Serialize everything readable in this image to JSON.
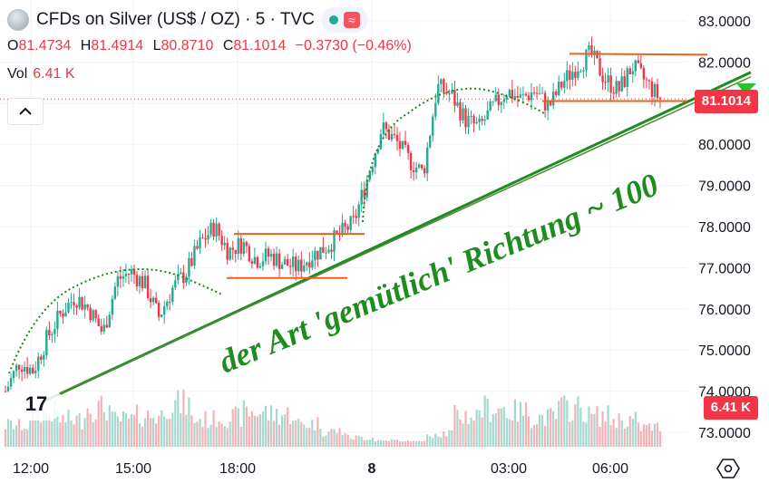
{
  "header": {
    "title": "CFDs on Silver (US$ / OZ) · 5 · TVC",
    "symbol_icon": "silver-coin-icon",
    "status_icon": "market-open-dot-icon",
    "wave_icon": "wave-icon"
  },
  "ohlc": {
    "open_label": "O",
    "open": "81.4734",
    "high_label": "H",
    "high": "81.4914",
    "low_label": "L",
    "low": "80.8710",
    "close_label": "C",
    "close": "81.1014",
    "change": "−0.3730 (−0.46%)"
  },
  "volume": {
    "label": "Vol",
    "value": "6.41 K"
  },
  "price_tag": "81.1014",
  "volume_tag": "6.41 K",
  "logo_text": "17",
  "colors": {
    "up": "#22ab94",
    "down": "#f23645",
    "vol_up": "#a6d8cf",
    "vol_down": "#f7b1b5",
    "annotation": "#1e8c1e",
    "channel": "#e6621f"
  },
  "chart_data": {
    "type": "candlestick",
    "y_axis": {
      "ticks": [
        "83.0000",
        "82.0000",
        "81.0000",
        "80.0000",
        "79.0000",
        "78.0000",
        "77.0000",
        "76.0000",
        "75.0000",
        "74.0000",
        "73.0000"
      ],
      "ylim": [
        72.8,
        83.4
      ]
    },
    "x_axis": {
      "ticks": [
        "12:00",
        "15:00",
        "18:00",
        "8",
        "03:00",
        "06:00"
      ]
    },
    "last_price": 81.1014,
    "price_path": [
      74.0,
      74.7,
      74.5,
      75.3,
      75.9,
      76.3,
      76.0,
      75.4,
      76.7,
      76.9,
      76.6,
      75.8,
      76.5,
      76.9,
      77.6,
      78.0,
      77.4,
      77.6,
      77.2,
      77.3,
      77.1,
      77.0,
      77.3,
      77.5,
      77.8,
      78.1,
      79.2,
      80.4,
      80.1,
      79.6,
      79.3,
      81.4,
      81.2,
      80.6,
      80.4,
      80.9,
      81.3,
      81.1,
      81.3,
      80.9,
      81.5,
      81.9,
      82.2,
      81.6,
      81.3,
      81.9,
      81.5,
      81.1
    ],
    "volume_profile": [
      0.28,
      0.45,
      0.35,
      0.5,
      0.35,
      0.4,
      0.55,
      0.35,
      0.38,
      0.45,
      0.42,
      0.3,
      0.2,
      0.12,
      0.08,
      0.06,
      0.18,
      0.4,
      0.5,
      0.45,
      0.38,
      0.5,
      0.4,
      0.35,
      0.25
    ],
    "annotations": [
      {
        "kind": "text",
        "text": "der Art 'gemütlich' Richtung ~ 100"
      },
      {
        "kind": "trendline",
        "from": [
          "11:45",
          73.85
        ],
        "to": [
          "07:30",
          81.5
        ]
      },
      {
        "kind": "range",
        "top": 77.82,
        "bottom": 76.75
      },
      {
        "kind": "range",
        "top": 82.2,
        "bottom": 81.05
      }
    ]
  }
}
